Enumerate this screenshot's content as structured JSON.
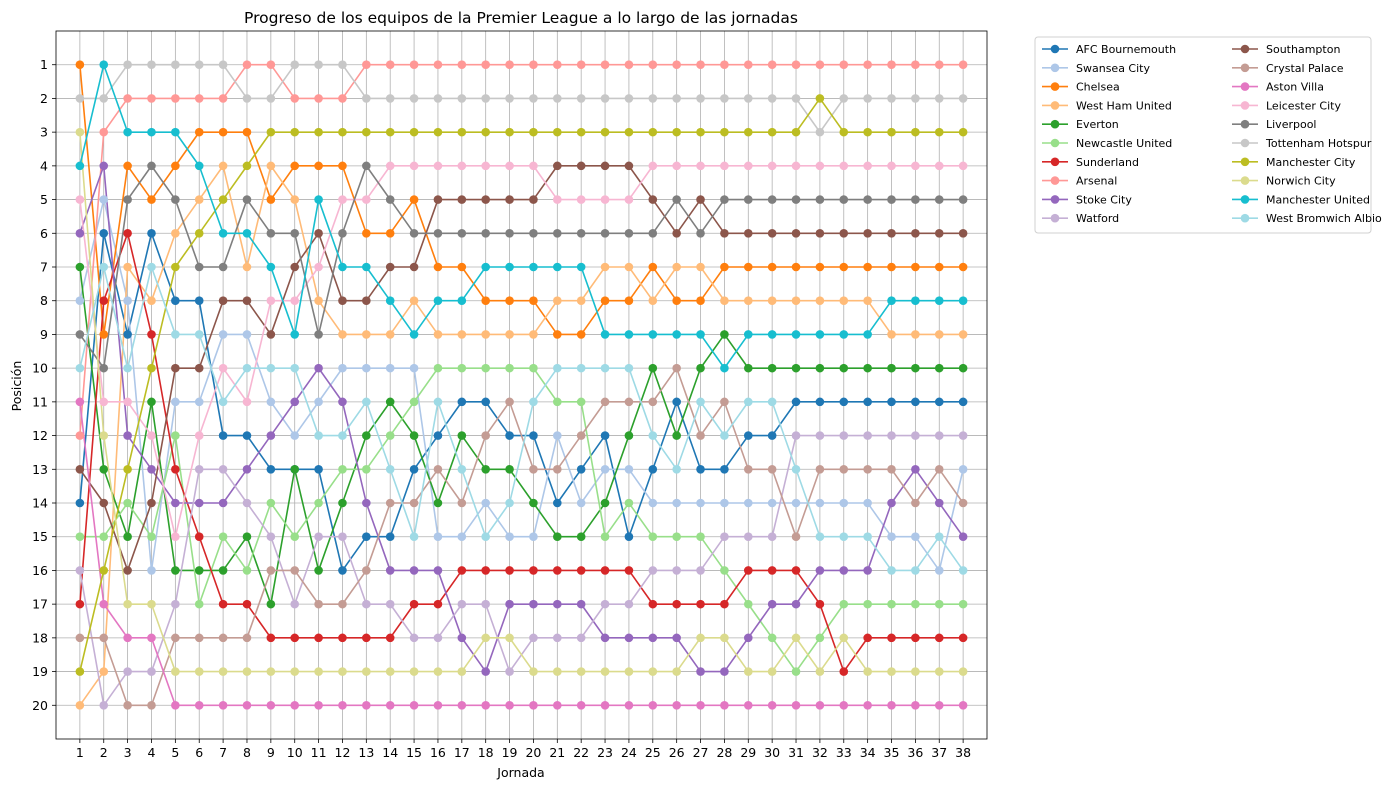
{
  "chart_data": {
    "type": "line",
    "title": "Progreso de los equipos de la Premier League a lo largo de las jornadas",
    "xlabel": "Jornada",
    "ylabel": "Posición",
    "y_inverted": true,
    "xlim": [
      0,
      39
    ],
    "ylim": [
      21,
      0
    ],
    "grid": true,
    "legend_position": "outside-top-right",
    "x": [
      1,
      2,
      3,
      4,
      5,
      6,
      7,
      8,
      9,
      10,
      11,
      12,
      13,
      14,
      15,
      16,
      17,
      18,
      19,
      20,
      21,
      22,
      23,
      24,
      25,
      26,
      27,
      28,
      29,
      30,
      31,
      32,
      33,
      34,
      35,
      36,
      37,
      38
    ],
    "yticks": [
      1,
      2,
      3,
      4,
      5,
      6,
      7,
      8,
      9,
      10,
      11,
      12,
      13,
      14,
      15,
      16,
      17,
      18,
      19,
      20
    ],
    "series": [
      {
        "name": "AFC Bournemouth",
        "color": "#1f77b4",
        "values": [
          14,
          6,
          9,
          6,
          8,
          8,
          12,
          12,
          13,
          13,
          13,
          16,
          15,
          15,
          13,
          12,
          11,
          11,
          12,
          12,
          14,
          13,
          12,
          15,
          13,
          11,
          13,
          13,
          12,
          12,
          11,
          11,
          11,
          11,
          11,
          11,
          11,
          11
        ]
      },
      {
        "name": "Swansea City",
        "color": "#aec7e8",
        "values": [
          8,
          5,
          8,
          16,
          11,
          11,
          9,
          9,
          11,
          12,
          11,
          10,
          10,
          10,
          10,
          15,
          15,
          14,
          15,
          15,
          12,
          14,
          13,
          13,
          14,
          14,
          14,
          14,
          14,
          14,
          14,
          14,
          14,
          14,
          15,
          15,
          16,
          13
        ]
      },
      {
        "name": "Chelsea",
        "color": "#ff7f0e",
        "values": [
          1,
          9,
          4,
          5,
          4,
          3,
          3,
          3,
          5,
          4,
          4,
          4,
          6,
          6,
          5,
          7,
          7,
          8,
          8,
          8,
          9,
          9,
          8,
          8,
          7,
          8,
          8,
          7,
          7,
          7,
          7,
          7,
          7,
          7,
          7,
          7,
          7,
          7
        ]
      },
      {
        "name": "West Ham United",
        "color": "#ffbb78",
        "values": [
          20,
          19,
          7,
          8,
          6,
          5,
          4,
          7,
          4,
          5,
          8,
          9,
          9,
          9,
          8,
          9,
          9,
          9,
          9,
          9,
          8,
          8,
          7,
          7,
          8,
          7,
          7,
          8,
          8,
          8,
          8,
          8,
          8,
          8,
          9,
          9,
          9,
          9
        ]
      },
      {
        "name": "Everton",
        "color": "#2ca02c",
        "values": [
          7,
          13,
          15,
          11,
          16,
          16,
          16,
          15,
          17,
          13,
          16,
          14,
          12,
          11,
          12,
          14,
          12,
          13,
          13,
          14,
          15,
          15,
          14,
          12,
          10,
          12,
          10,
          9,
          10,
          10,
          10,
          10,
          10,
          10,
          10,
          10,
          10,
          10
        ]
      },
      {
        "name": "Newcastle United",
        "color": "#98df8a",
        "values": [
          15,
          15,
          14,
          15,
          12,
          17,
          15,
          16,
          14,
          15,
          14,
          13,
          13,
          12,
          11,
          10,
          10,
          10,
          10,
          10,
          11,
          11,
          15,
          14,
          15,
          15,
          15,
          16,
          17,
          18,
          19,
          18,
          17,
          17,
          17,
          17,
          17,
          17
        ]
      },
      {
        "name": "Sunderland",
        "color": "#d62728",
        "values": [
          17,
          8,
          6,
          9,
          13,
          15,
          17,
          17,
          18,
          18,
          18,
          18,
          18,
          18,
          17,
          17,
          16,
          16,
          16,
          16,
          16,
          16,
          16,
          16,
          17,
          17,
          17,
          17,
          16,
          16,
          16,
          17,
          19,
          18,
          18,
          18,
          18,
          18
        ]
      },
      {
        "name": "Arsenal",
        "color": "#ff9896",
        "values": [
          12,
          3,
          2,
          2,
          2,
          2,
          2,
          1,
          1,
          2,
          2,
          2,
          1,
          1,
          1,
          1,
          1,
          1,
          1,
          1,
          1,
          1,
          1,
          1,
          1,
          1,
          1,
          1,
          1,
          1,
          1,
          1,
          1,
          1,
          1,
          1,
          1,
          1
        ]
      },
      {
        "name": "Stoke City",
        "color": "#9467bd",
        "values": [
          6,
          4,
          12,
          13,
          14,
          14,
          14,
          13,
          12,
          11,
          10,
          11,
          14,
          16,
          16,
          16,
          18,
          19,
          17,
          17,
          17,
          17,
          18,
          18,
          18,
          18,
          19,
          19,
          18,
          17,
          17,
          16,
          16,
          16,
          14,
          13,
          14,
          15
        ]
      },
      {
        "name": "Watford",
        "color": "#c5b0d5",
        "values": [
          16,
          20,
          19,
          19,
          17,
          13,
          13,
          14,
          15,
          17,
          15,
          15,
          17,
          17,
          18,
          18,
          17,
          17,
          19,
          18,
          18,
          18,
          17,
          17,
          16,
          16,
          16,
          15,
          15,
          15,
          12,
          12,
          12,
          12,
          12,
          12,
          12,
          12
        ]
      },
      {
        "name": "Southampton",
        "color": "#8c564b",
        "values": [
          13,
          14,
          16,
          14,
          10,
          10,
          8,
          8,
          9,
          7,
          6,
          8,
          8,
          7,
          7,
          5,
          5,
          5,
          5,
          5,
          4,
          4,
          4,
          4,
          5,
          6,
          5,
          6,
          6,
          6,
          6,
          6,
          6,
          6,
          6,
          6,
          6,
          6
        ]
      },
      {
        "name": "Crystal Palace",
        "color": "#c49c94",
        "values": [
          18,
          18,
          20,
          20,
          18,
          18,
          18,
          18,
          16,
          16,
          17,
          17,
          16,
          14,
          14,
          13,
          14,
          12,
          11,
          13,
          13,
          12,
          11,
          11,
          11,
          10,
          12,
          11,
          13,
          13,
          15,
          13,
          13,
          13,
          13,
          14,
          13,
          14
        ]
      },
      {
        "name": "Aston Villa",
        "color": "#e377c2",
        "values": [
          11,
          17,
          18,
          18,
          20,
          20,
          20,
          20,
          20,
          20,
          20,
          20,
          20,
          20,
          20,
          20,
          20,
          20,
          20,
          20,
          20,
          20,
          20,
          20,
          20,
          20,
          20,
          20,
          20,
          20,
          20,
          20,
          20,
          20,
          20,
          20,
          20,
          20
        ]
      },
      {
        "name": "Leicester City",
        "color": "#f7b6d2",
        "values": [
          5,
          11,
          11,
          12,
          15,
          12,
          10,
          11,
          8,
          8,
          7,
          5,
          5,
          4,
          4,
          4,
          4,
          4,
          4,
          4,
          5,
          5,
          5,
          5,
          4,
          4,
          4,
          4,
          4,
          4,
          4,
          4,
          4,
          4,
          4,
          4,
          4,
          4
        ]
      },
      {
        "name": "Liverpool",
        "color": "#7f7f7f",
        "values": [
          9,
          10,
          5,
          4,
          5,
          7,
          7,
          5,
          6,
          6,
          9,
          6,
          4,
          5,
          6,
          6,
          6,
          6,
          6,
          6,
          6,
          6,
          6,
          6,
          6,
          5,
          6,
          5,
          5,
          5,
          5,
          5,
          5,
          5,
          5,
          5,
          5,
          5
        ]
      },
      {
        "name": "Tottenham Hotspur",
        "color": "#c7c7c7",
        "values": [
          2,
          2,
          1,
          1,
          1,
          1,
          1,
          2,
          2,
          1,
          1,
          1,
          2,
          2,
          2,
          2,
          2,
          2,
          2,
          2,
          2,
          2,
          2,
          2,
          2,
          2,
          2,
          2,
          2,
          2,
          2,
          3,
          2,
          2,
          2,
          2,
          2,
          2
        ]
      },
      {
        "name": "Manchester City",
        "color": "#bcbd22",
        "values": [
          19,
          16,
          13,
          10,
          7,
          6,
          5,
          4,
          3,
          3,
          3,
          3,
          3,
          3,
          3,
          3,
          3,
          3,
          3,
          3,
          3,
          3,
          3,
          3,
          3,
          3,
          3,
          3,
          3,
          3,
          3,
          2,
          3,
          3,
          3,
          3,
          3,
          3
        ]
      },
      {
        "name": "Norwich City",
        "color": "#dbdb8d",
        "values": [
          3,
          12,
          17,
          17,
          19,
          19,
          19,
          19,
          19,
          19,
          19,
          19,
          19,
          19,
          19,
          19,
          19,
          18,
          18,
          19,
          19,
          19,
          19,
          19,
          19,
          19,
          18,
          18,
          19,
          19,
          18,
          19,
          18,
          19,
          19,
          19,
          19,
          19
        ]
      },
      {
        "name": "Manchester United",
        "color": "#17becf",
        "values": [
          4,
          1,
          3,
          3,
          3,
          4,
          6,
          6,
          7,
          9,
          5,
          7,
          7,
          8,
          9,
          8,
          8,
          7,
          7,
          7,
          7,
          7,
          9,
          9,
          9,
          9,
          9,
          10,
          9,
          9,
          9,
          9,
          9,
          9,
          8,
          8,
          8,
          8
        ]
      },
      {
        "name": "West Bromwich Albion",
        "color": "#9edae5",
        "values": [
          10,
          7,
          10,
          7,
          9,
          9,
          11,
          10,
          10,
          10,
          12,
          12,
          11,
          13,
          15,
          11,
          13,
          15,
          14,
          11,
          10,
          10,
          10,
          10,
          12,
          13,
          11,
          12,
          11,
          11,
          13,
          15,
          15,
          15,
          16,
          16,
          15,
          16
        ]
      }
    ]
  }
}
